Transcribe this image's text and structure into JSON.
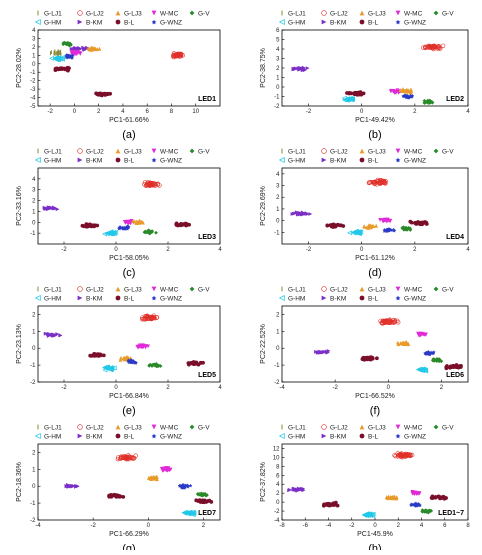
{
  "chart_data": [
    {
      "panel": "(a)",
      "tag": "LED1",
      "type": "scatter",
      "xlabel": "PC1-61.66%",
      "ylabel": "PC2-28.02%",
      "xlim": [
        -3,
        12
      ],
      "ylim": [
        -5,
        4
      ],
      "xticks": [
        -2,
        0,
        2,
        4,
        6,
        8,
        10
      ],
      "yticks": [
        -5,
        -4,
        -3,
        -2,
        -1,
        0,
        1,
        2,
        3,
        4
      ],
      "clusters": [
        {
          "series": "G-LJ2",
          "x": 8.5,
          "y": 1.0
        },
        {
          "series": "G-LJ1",
          "x": -1.5,
          "y": 1.3
        },
        {
          "series": "G-LJ3",
          "x": 1.5,
          "y": 1.8
        },
        {
          "series": "G-V",
          "x": -0.5,
          "y": 2.3
        },
        {
          "series": "B-KM",
          "x": 0.3,
          "y": 1.8
        },
        {
          "series": "W-MC",
          "x": 0.0,
          "y": 1.3
        },
        {
          "series": "G-HM",
          "x": -1.4,
          "y": 0.6
        },
        {
          "series": "B-L",
          "x": -1.0,
          "y": -0.6
        },
        {
          "series": "G-WNZ",
          "x": -0.4,
          "y": 0.9
        },
        {
          "series": "B-L",
          "x": 2.2,
          "y": -3.6
        }
      ]
    },
    {
      "panel": "(b)",
      "tag": "LED2",
      "type": "scatter",
      "xlabel": "PC1-49.42%",
      "ylabel": "PC2-38.75%",
      "xlim": [
        -3,
        4
      ],
      "ylim": [
        -2,
        6
      ],
      "xticks": [
        -2,
        0,
        2,
        4
      ],
      "yticks": [
        -2,
        -1,
        0,
        1,
        2,
        3,
        4,
        5,
        6
      ],
      "clusters": [
        {
          "series": "G-LJ2",
          "x": 2.7,
          "y": 4.2
        },
        {
          "series": "B-KM",
          "x": -2.3,
          "y": 1.9
        },
        {
          "series": "B-L",
          "x": -0.2,
          "y": -0.7
        },
        {
          "series": "W-MC",
          "x": 1.3,
          "y": -0.5
        },
        {
          "series": "G-LJ3",
          "x": 1.7,
          "y": -0.4
        },
        {
          "series": "G-HM",
          "x": -0.5,
          "y": -1.3
        },
        {
          "series": "G-WNZ",
          "x": 1.7,
          "y": -1.0
        },
        {
          "series": "G-V",
          "x": 2.5,
          "y": -1.6
        }
      ]
    },
    {
      "panel": "(c)",
      "tag": "LED3",
      "type": "scatter",
      "xlabel": "PC1-58.05%",
      "ylabel": "PC2-33.16%",
      "xlim": [
        -3,
        4
      ],
      "ylim": [
        -2,
        5
      ],
      "xticks": [
        -2,
        0,
        2,
        4
      ],
      "yticks": [
        -1,
        0,
        1,
        2,
        3,
        4
      ],
      "clusters": [
        {
          "series": "G-LJ2",
          "x": 1.3,
          "y": 3.5
        },
        {
          "series": "B-KM",
          "x": -2.5,
          "y": 1.3
        },
        {
          "series": "B-L",
          "x": -1.0,
          "y": -0.3
        },
        {
          "series": "W-MC",
          "x": 0.5,
          "y": 0.0
        },
        {
          "series": "G-LJ3",
          "x": 0.9,
          "y": 0.0
        },
        {
          "series": "G-WNZ",
          "x": 0.3,
          "y": -0.5
        },
        {
          "series": "G-HM",
          "x": -0.2,
          "y": -1.0
        },
        {
          "series": "G-V",
          "x": 1.3,
          "y": -0.9
        },
        {
          "series": "B-L",
          "x": 2.6,
          "y": -0.2
        }
      ]
    },
    {
      "panel": "(d)",
      "tag": "LED4",
      "type": "scatter",
      "xlabel": "PC1-61.12%",
      "ylabel": "PC2-29.69%",
      "xlim": [
        -3,
        4
      ],
      "ylim": [
        -2,
        4.5
      ],
      "xticks": [
        -2,
        0,
        2,
        4
      ],
      "yticks": [
        -1,
        0,
        1,
        2,
        3,
        4
      ],
      "clusters": [
        {
          "series": "G-LJ2",
          "x": 0.6,
          "y": 3.3
        },
        {
          "series": "B-KM",
          "x": -2.3,
          "y": 0.6
        },
        {
          "series": "B-L",
          "x": -1.0,
          "y": -0.4
        },
        {
          "series": "G-HM",
          "x": -0.2,
          "y": -1.0
        },
        {
          "series": "W-MC",
          "x": 0.9,
          "y": 0.0
        },
        {
          "series": "G-LJ3",
          "x": 0.3,
          "y": -0.5
        },
        {
          "series": "G-WNZ",
          "x": 1.0,
          "y": -0.8
        },
        {
          "series": "G-V",
          "x": 1.7,
          "y": -0.7
        },
        {
          "series": "B-L",
          "x": 2.2,
          "y": -0.2
        }
      ]
    },
    {
      "panel": "(e)",
      "tag": "LED5",
      "type": "scatter",
      "xlabel": "PC1-66.84%",
      "ylabel": "PC2-23.13%",
      "xlim": [
        -3,
        4
      ],
      "ylim": [
        -2,
        2.5
      ],
      "xticks": [
        -2,
        0,
        2,
        4
      ],
      "yticks": [
        -2,
        -1,
        0,
        1,
        2
      ],
      "clusters": [
        {
          "series": "G-LJ2",
          "x": 1.3,
          "y": 1.8
        },
        {
          "series": "B-KM",
          "x": -2.4,
          "y": 0.8
        },
        {
          "series": "B-L",
          "x": -0.7,
          "y": -0.4
        },
        {
          "series": "G-HM",
          "x": -0.3,
          "y": -1.2
        },
        {
          "series": "W-MC",
          "x": 1.0,
          "y": 0.1
        },
        {
          "series": "G-LJ3",
          "x": 0.4,
          "y": -0.6
        },
        {
          "series": "G-WNZ",
          "x": 0.6,
          "y": -0.8
        },
        {
          "series": "G-V",
          "x": 1.5,
          "y": -1.0
        },
        {
          "series": "B-L",
          "x": 3.0,
          "y": -0.9
        }
      ]
    },
    {
      "panel": "(f)",
      "tag": "LED6",
      "type": "scatter",
      "xlabel": "PC1-66.52%",
      "ylabel": "PC2-22.52%",
      "xlim": [
        -4,
        3
      ],
      "ylim": [
        -2,
        2.5
      ],
      "xticks": [
        -4,
        -2,
        0,
        2
      ],
      "yticks": [
        -2,
        -1,
        0,
        1,
        2
      ],
      "clusters": [
        {
          "series": "G-LJ2",
          "x": 0.0,
          "y": 1.6
        },
        {
          "series": "B-KM",
          "x": -2.5,
          "y": -0.2
        },
        {
          "series": "B-L",
          "x": -0.8,
          "y": -0.6
        },
        {
          "series": "W-MC",
          "x": 1.3,
          "y": 0.8
        },
        {
          "series": "G-LJ3",
          "x": 0.6,
          "y": 0.3
        },
        {
          "series": "G-HM",
          "x": 1.3,
          "y": -1.3
        },
        {
          "series": "G-WNZ",
          "x": 1.5,
          "y": -0.3
        },
        {
          "series": "G-V",
          "x": 1.8,
          "y": -0.7
        },
        {
          "series": "B-L",
          "x": 2.4,
          "y": -1.1
        }
      ]
    },
    {
      "panel": "(g)",
      "tag": "LED7",
      "type": "scatter",
      "xlabel": "PC1-66.29%",
      "ylabel": "PC2-18.36%",
      "xlim": [
        -4,
        2.6
      ],
      "ylim": [
        -2,
        2.5
      ],
      "xticks": [
        -4,
        -2,
        0,
        2
      ],
      "yticks": [
        -2,
        -1,
        0,
        1,
        2
      ],
      "clusters": [
        {
          "series": "G-LJ2",
          "x": -0.8,
          "y": 1.7
        },
        {
          "series": "B-KM",
          "x": -2.8,
          "y": 0.0
        },
        {
          "series": "B-L",
          "x": -1.2,
          "y": -0.6
        },
        {
          "series": "W-MC",
          "x": 0.7,
          "y": 1.0
        },
        {
          "series": "G-LJ3",
          "x": 0.2,
          "y": 0.5
        },
        {
          "series": "G-WNZ",
          "x": 1.3,
          "y": 0.0
        },
        {
          "series": "G-V",
          "x": 2.0,
          "y": -0.5
        },
        {
          "series": "G-HM",
          "x": 1.5,
          "y": -1.6
        },
        {
          "series": "B-L",
          "x": 2.0,
          "y": -0.9
        }
      ]
    },
    {
      "panel": "(h)",
      "tag": "LED1~7",
      "type": "scatter",
      "xlabel": "PC1-45.9%",
      "ylabel": "PC2-37.82%",
      "xlim": [
        -8,
        8
      ],
      "ylim": [
        -4,
        13
      ],
      "xticks": [
        -8,
        -6,
        -4,
        -2,
        0,
        2,
        4,
        6,
        8
      ],
      "yticks": [
        -4,
        -2,
        0,
        2,
        4,
        6,
        8,
        10,
        12
      ],
      "clusters": [
        {
          "series": "G-LJ2",
          "x": 2.5,
          "y": 10.5
        },
        {
          "series": "B-KM",
          "x": -6.7,
          "y": 2.8
        },
        {
          "series": "B-L",
          "x": -4.0,
          "y": -0.5
        },
        {
          "series": "W-MC",
          "x": 3.5,
          "y": 2.0
        },
        {
          "series": "G-LJ3",
          "x": 1.5,
          "y": 1.0
        },
        {
          "series": "G-HM",
          "x": -0.5,
          "y": -2.8
        },
        {
          "series": "G-WNZ",
          "x": 3.5,
          "y": -0.5
        },
        {
          "series": "G-V",
          "x": 4.5,
          "y": -2.0
        },
        {
          "series": "B-L",
          "x": 5.5,
          "y": 1.0
        }
      ]
    }
  ],
  "legend": {
    "row1": [
      {
        "label": "G-LJ1",
        "color": "#8a8a3a",
        "marker": "bar"
      },
      {
        "label": "G-LJ2",
        "color": "#e0302a",
        "marker": "circle"
      },
      {
        "label": "G-LJ3",
        "color": "#e89a2a",
        "marker": "triangle-up"
      },
      {
        "label": "W-MC",
        "color": "#e02ad8",
        "marker": "triangle-down"
      },
      {
        "label": "G-V",
        "color": "#2a8a2a",
        "marker": "diamond"
      }
    ],
    "row2": [
      {
        "label": "G-HM",
        "color": "#22c8e8",
        "marker": "triangle-left"
      },
      {
        "label": "B-KM",
        "color": "#7b2fc6",
        "marker": "triangle-right"
      },
      {
        "label": "B-L",
        "color": "#7a0f2a",
        "marker": "hexagon"
      },
      {
        "label": "G-WNZ",
        "color": "#2a3ac8",
        "marker": "star"
      }
    ]
  }
}
